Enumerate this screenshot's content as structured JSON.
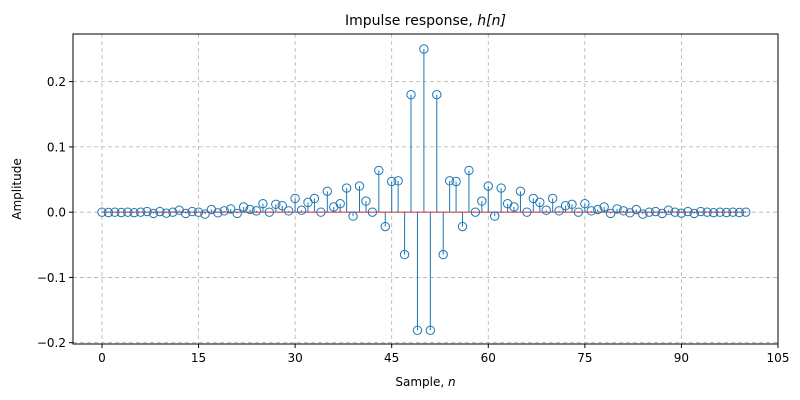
{
  "chart_data": {
    "type": "stem",
    "title_main": "Impulse response, ",
    "title_math": "h[n]",
    "xlabel_main": "Sample, ",
    "xlabel_math": "n",
    "ylabel": "Amplitude",
    "xlim": [
      -4.5,
      105
    ],
    "ylim": [
      -0.202,
      0.273
    ],
    "xticks": [
      0,
      15,
      30,
      45,
      60,
      75,
      90,
      105
    ],
    "yticks": [
      -0.2,
      -0.1,
      0.0,
      0.1,
      0.2
    ],
    "ytick_labels": [
      "−0.2",
      "−0.1",
      "0.0",
      "0.1",
      "0.2"
    ],
    "grid": true,
    "color": "#1f77b4",
    "x": [
      0,
      1,
      2,
      3,
      4,
      5,
      6,
      7,
      8,
      9,
      10,
      11,
      12,
      13,
      14,
      15,
      16,
      17,
      18,
      19,
      20,
      21,
      22,
      23,
      24,
      25,
      26,
      27,
      28,
      29,
      30,
      31,
      32,
      33,
      34,
      35,
      36,
      37,
      38,
      39,
      40,
      41,
      42,
      43,
      44,
      45,
      46,
      47,
      48,
      49,
      50,
      51,
      52,
      53,
      54,
      55,
      56,
      57,
      58,
      59,
      60,
      61,
      62,
      63,
      64,
      65,
      66,
      67,
      68,
      69,
      70,
      71,
      72,
      73,
      74,
      75,
      76,
      77,
      78,
      79,
      80,
      81,
      82,
      83,
      84,
      85,
      86,
      87,
      88,
      89,
      90,
      91,
      92,
      93,
      94,
      95,
      96,
      97,
      98,
      99,
      100
    ],
    "values": [
      0.0,
      -0.0005,
      0.0,
      -0.0005,
      0.0,
      -0.0008,
      0.0,
      0.001,
      -0.002,
      0.001,
      -0.0015,
      0.0,
      0.003,
      -0.002,
      0.001,
      0.0,
      -0.003,
      0.004,
      -0.001,
      0.002,
      0.005,
      -0.002,
      0.008,
      0.004,
      0.002,
      0.013,
      0.0,
      0.012,
      0.01,
      0.002,
      0.021,
      0.003,
      0.015,
      0.021,
      0.0,
      0.032,
      0.008,
      0.013,
      0.037,
      -0.006,
      0.04,
      0.017,
      0.0,
      0.064,
      -0.022,
      0.047,
      0.048,
      -0.065,
      0.18,
      -0.181,
      0.25,
      -0.181,
      0.18,
      -0.065,
      0.048,
      0.047,
      -0.022,
      0.064,
      0.0,
      0.017,
      0.04,
      -0.006,
      0.037,
      0.013,
      0.008,
      0.032,
      0.0,
      0.021,
      0.015,
      0.003,
      0.021,
      0.002,
      0.01,
      0.012,
      0.0,
      0.013,
      0.002,
      0.004,
      0.008,
      -0.002,
      0.005,
      0.002,
      -0.001,
      0.004,
      -0.003,
      0.0,
      0.001,
      -0.002,
      0.003,
      0.0,
      -0.0015,
      0.001,
      -0.002,
      0.001,
      0.0,
      -0.0008,
      0.0,
      -0.0005,
      0.0,
      -0.0005,
      0.0
    ]
  }
}
